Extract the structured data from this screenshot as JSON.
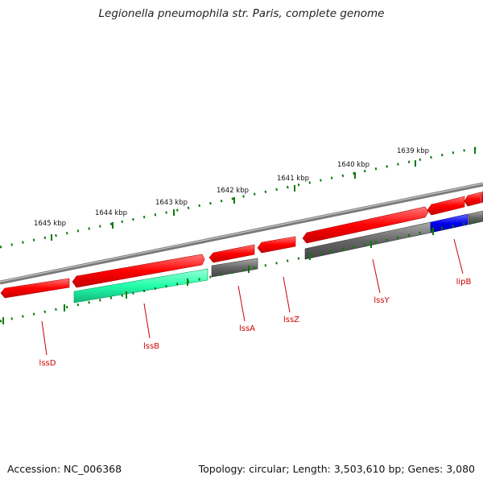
{
  "title": "Legionella pneumophila str. Paris, complete genome",
  "footer": {
    "accession": "Accession: NC_006368",
    "summary": "Topology: circular; Length: 3,503,610 bp; Genes: 3,080"
  },
  "scale_labels": [
    "1639 kbp",
    "1640 kbp",
    "1641 kbp",
    "1642 kbp",
    "1643 kbp",
    "1644 kbp",
    "1645 kbp"
  ],
  "gene_labels": [
    "lipB",
    "lssY",
    "lssZ",
    "lssA",
    "lssB",
    "lssD"
  ],
  "colors": {
    "forward_gene": "#ff0000",
    "gray_gene": "#666666",
    "green_gene": "#22ffaa",
    "blue_gene": "#0000ee",
    "backbone": "#888888",
    "tick": "#0a7a0a",
    "label": "#cc0000"
  }
}
